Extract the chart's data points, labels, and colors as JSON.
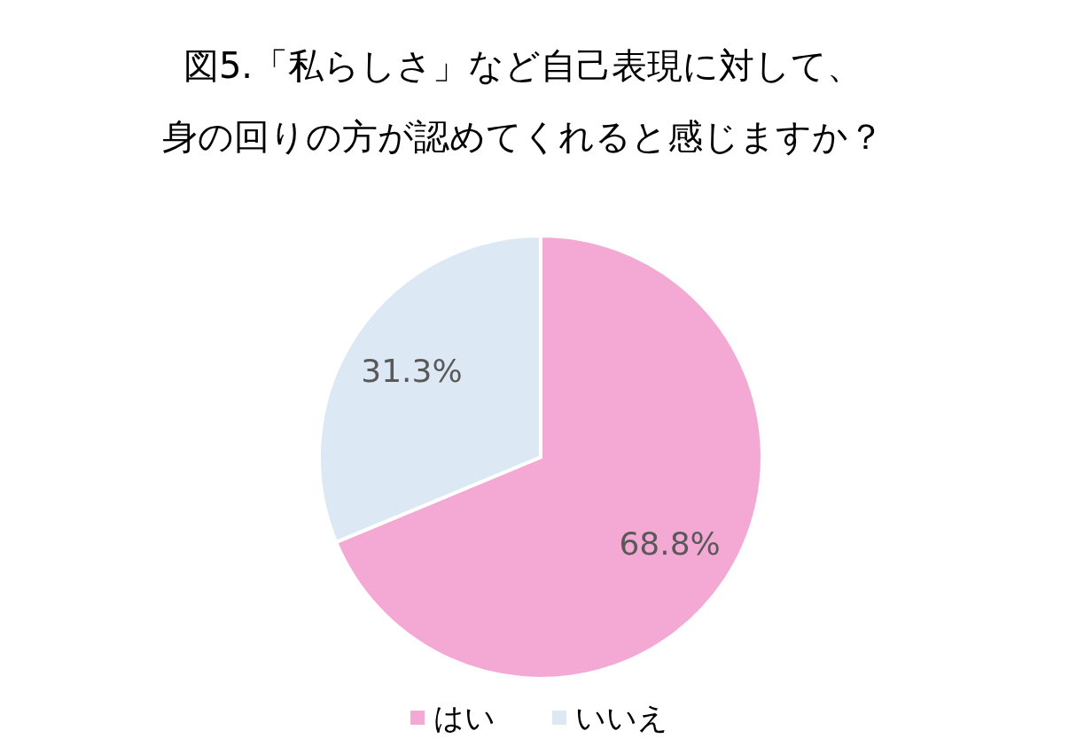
{
  "chart_data": {
    "type": "pie",
    "title": "図5.「私らしさ」など自己表現に対して、身の回りの方が認めてくれると感じますか？",
    "categories": [
      "はい",
      "いいえ"
    ],
    "values": [
      68.8,
      31.3
    ],
    "value_labels": [
      "68.8%",
      "31.3%"
    ],
    "colors": [
      "#f4a9d4",
      "#dde8f5"
    ],
    "legend": "bottom"
  }
}
